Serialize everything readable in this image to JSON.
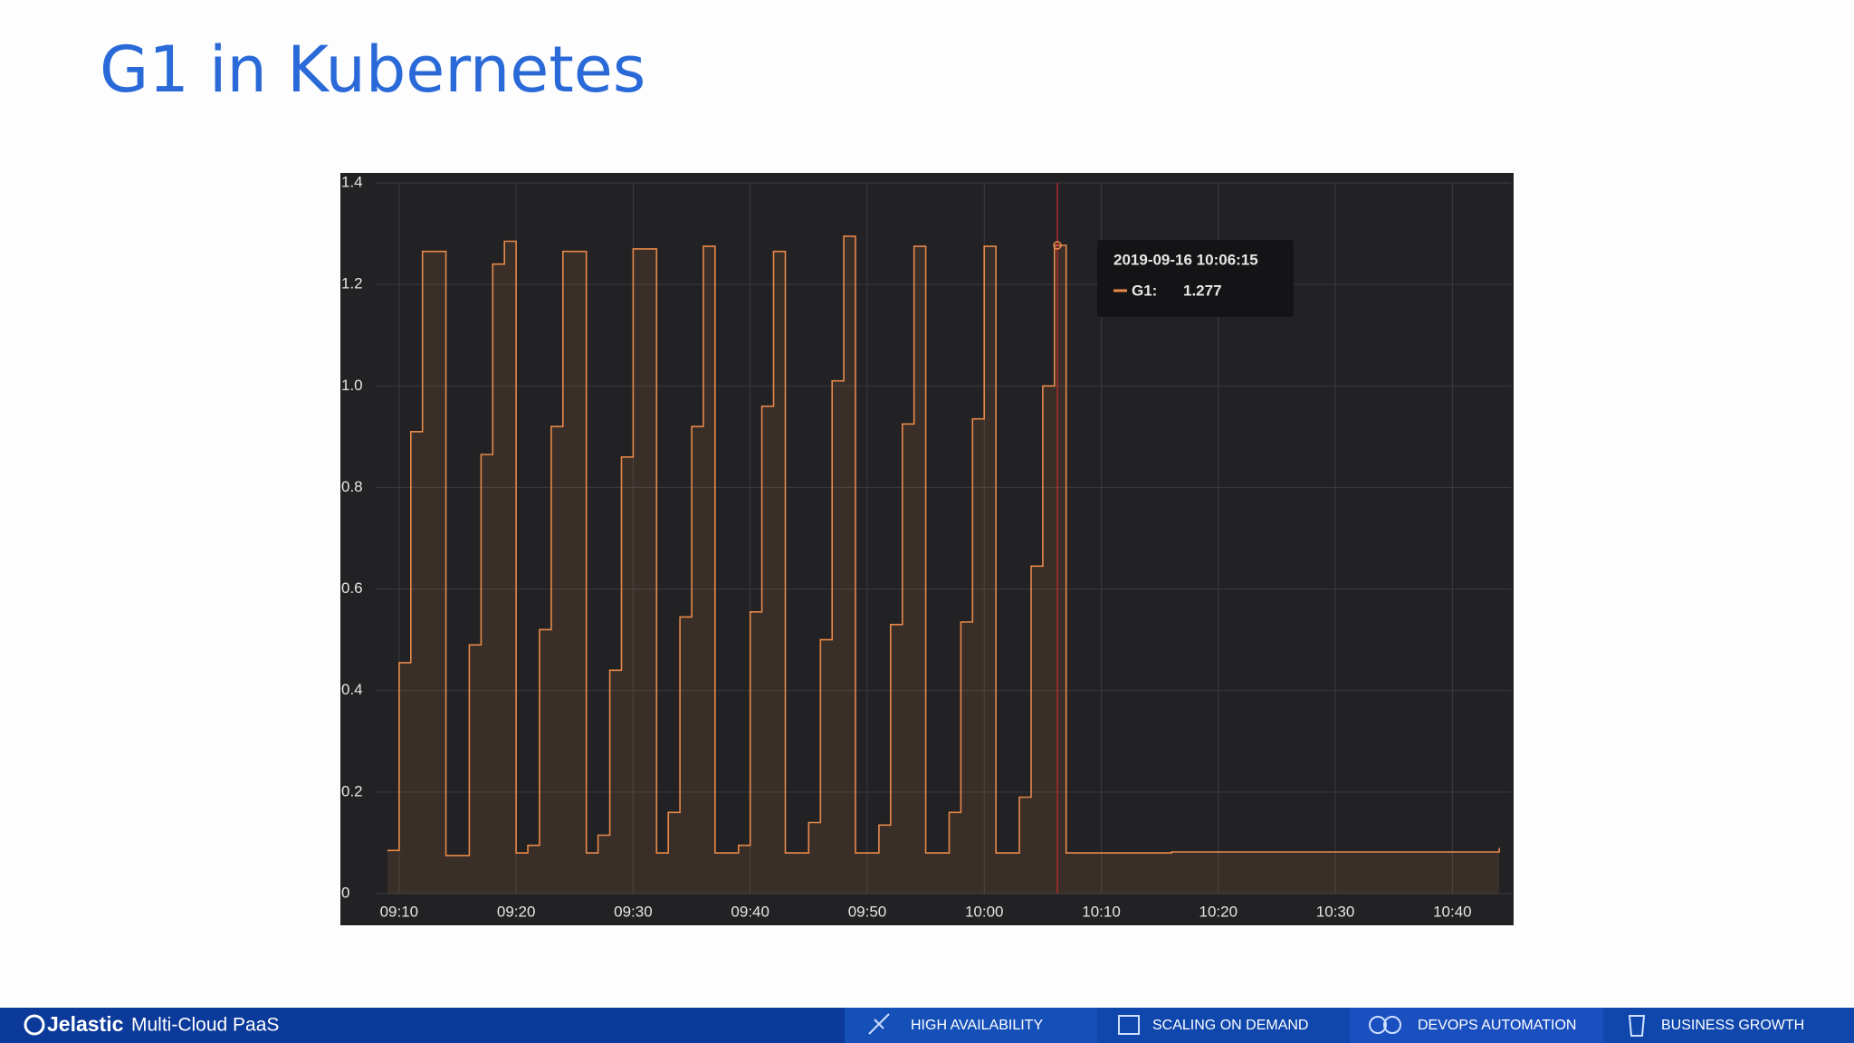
{
  "slide": {
    "title": "G1 in Kubernetes"
  },
  "chart_data": {
    "type": "line",
    "x": [
      "09:09",
      "09:10",
      "09:11",
      "09:12",
      "09:14",
      "09:16",
      "09:17",
      "09:18",
      "09:19",
      "09:20",
      "09:21",
      "09:22",
      "09:23",
      "09:24",
      "09:26",
      "09:27",
      "09:28",
      "09:29",
      "09:30",
      "09:32",
      "09:33",
      "09:34",
      "09:35",
      "09:36",
      "09:37",
      "09:39",
      "09:40",
      "09:41",
      "09:42",
      "09:43",
      "09:45",
      "09:46",
      "09:47",
      "09:48",
      "09:49",
      "09:51",
      "09:52",
      "09:53",
      "09:54",
      "09:55",
      "09:57",
      "09:58",
      "09:59",
      "10:00",
      "10:01",
      "10:03",
      "10:04",
      "10:05",
      "10:06",
      "10:07",
      "10:16",
      "10:44"
    ],
    "values": [
      0.085,
      0.455,
      0.91,
      1.265,
      0.075,
      0.49,
      0.865,
      1.24,
      1.285,
      0.08,
      0.095,
      0.52,
      0.92,
      1.265,
      0.08,
      0.115,
      0.44,
      0.86,
      1.27,
      0.08,
      0.16,
      0.545,
      0.92,
      1.275,
      0.08,
      0.095,
      0.555,
      0.96,
      1.265,
      0.08,
      0.14,
      0.5,
      1.01,
      1.295,
      0.08,
      0.135,
      0.53,
      0.925,
      1.275,
      0.08,
      0.16,
      0.535,
      0.935,
      1.275,
      0.08,
      0.19,
      0.645,
      1.0,
      1.277,
      0.08,
      0.082,
      0.09
    ],
    "color": "#e8894a",
    "xlim": [
      "09:08",
      "10:45"
    ],
    "xticks": [
      "09:10",
      "09:20",
      "09:30",
      "09:40",
      "09:50",
      "10:00",
      "10:10",
      "10:20",
      "10:30",
      "10:40"
    ],
    "ylim": [
      0,
      1.4
    ],
    "yticks": [
      0,
      0.2,
      0.4,
      0.6,
      0.8,
      {
        "value": 1,
        "label": "1.0"
      },
      1.2,
      1.4
    ],
    "grid": true,
    "tooltip": {
      "time": "2019-09-16 10:06:15",
      "label": "G1:",
      "value": 1.277
    }
  },
  "footer": {
    "brand": "Jelastic",
    "tagline": "Multi-Cloud PaaS",
    "items": [
      "HIGH AVAILABILITY",
      "SCALING ON DEMAND",
      "DEVOPS AUTOMATION",
      "BUSINESS GROWTH"
    ]
  }
}
